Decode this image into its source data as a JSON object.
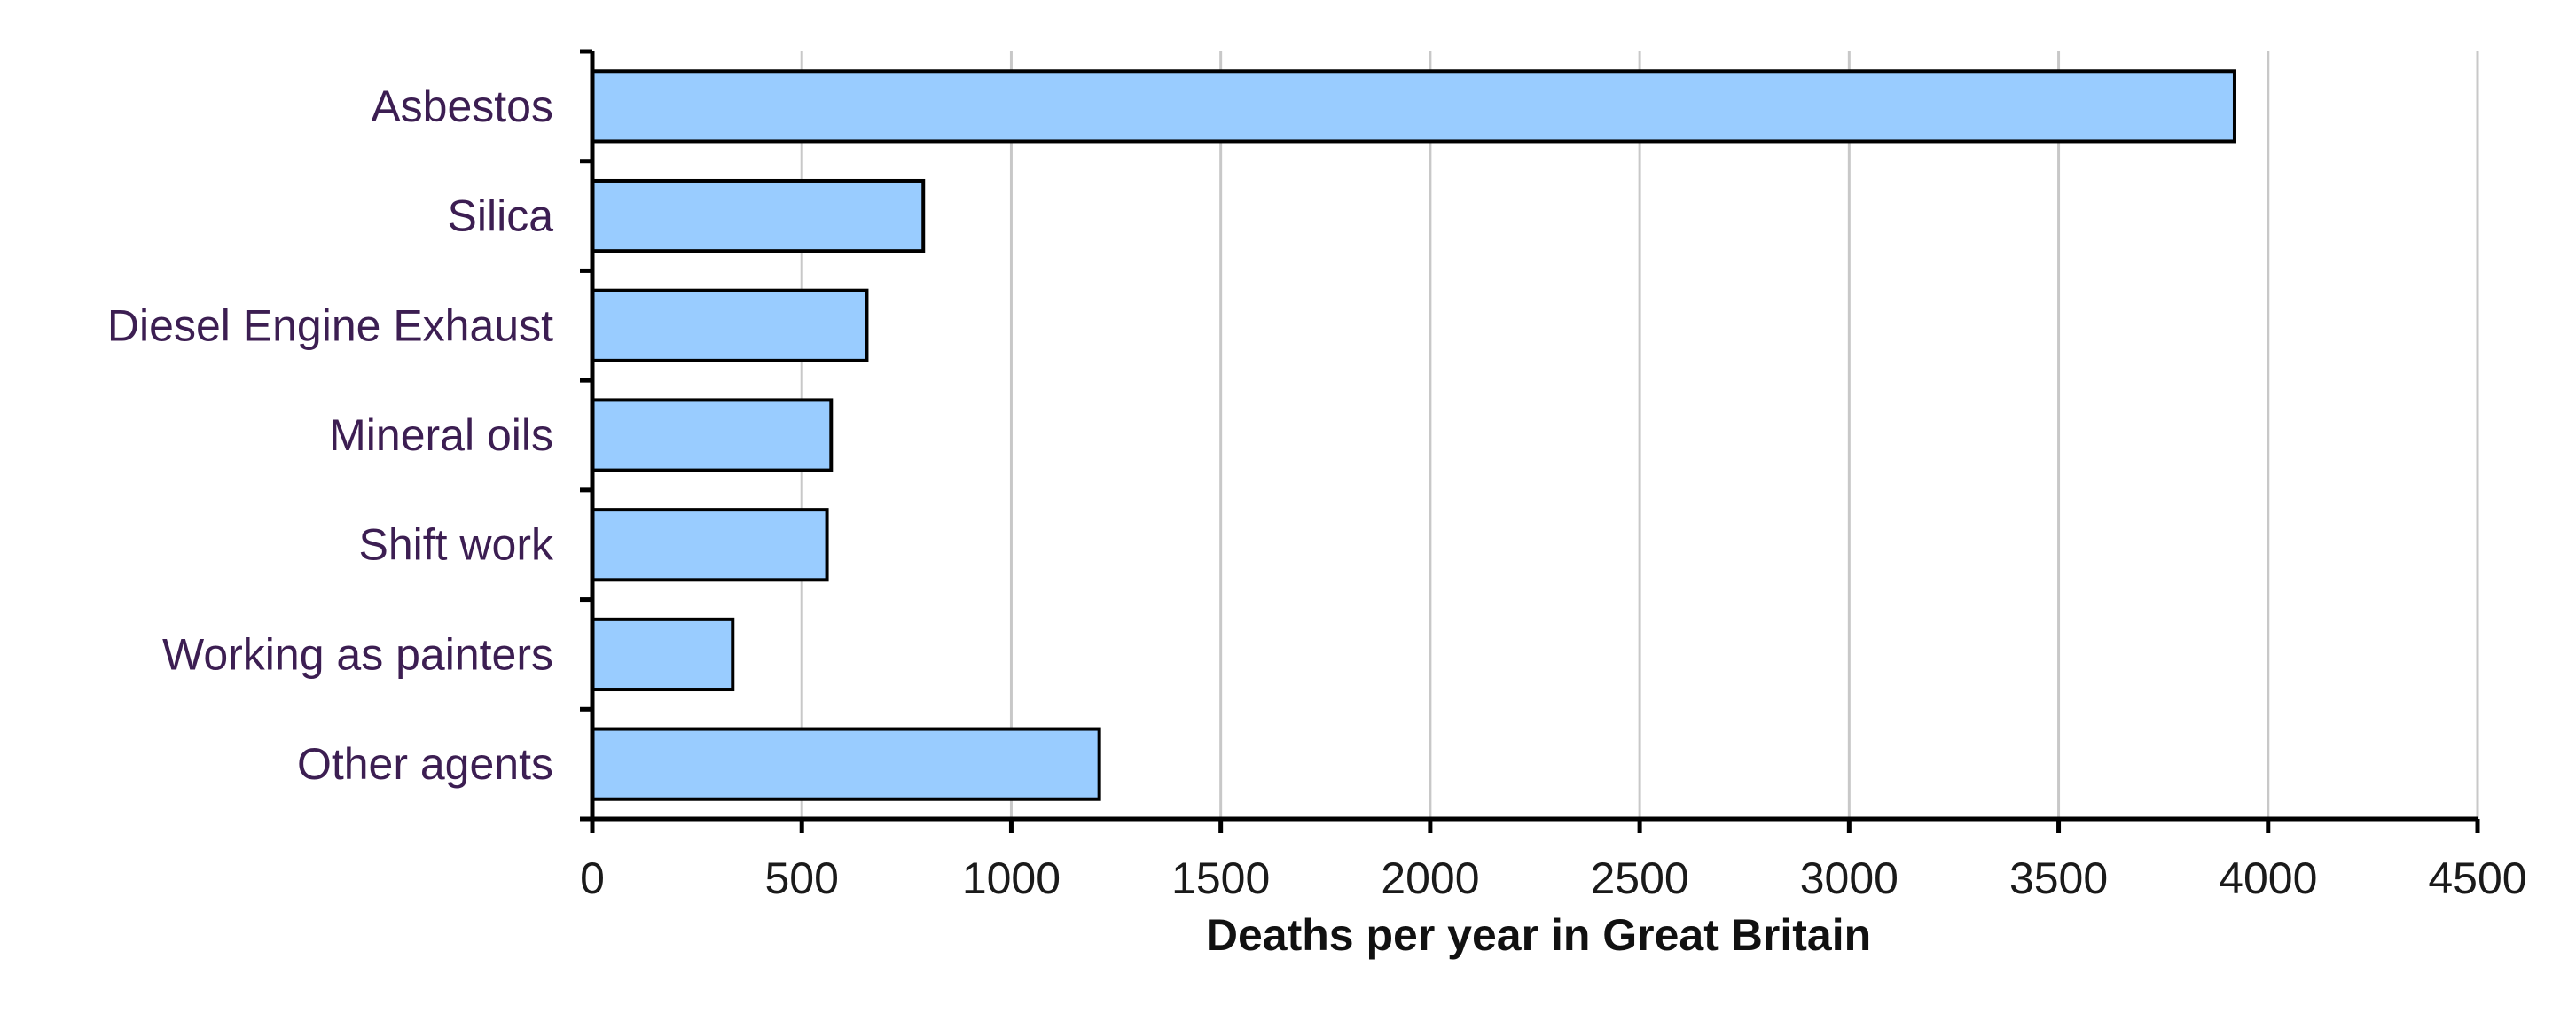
{
  "chart_data": {
    "type": "bar",
    "orientation": "horizontal",
    "categories": [
      "Asbestos",
      "Silica",
      "Diesel Engine Exhaust",
      "Mineral oils",
      "Shift work",
      "Working as painters",
      "Other agents"
    ],
    "values": [
      3920,
      790,
      655,
      570,
      560,
      335,
      1210
    ],
    "title": "",
    "xlabel": "Deaths per year in Great Britain",
    "ylabel": "",
    "xlim": [
      0,
      4500
    ],
    "xticks": [
      0,
      500,
      1000,
      1500,
      2000,
      2500,
      3000,
      3500,
      4000,
      4500
    ],
    "xtick_labels": [
      "0",
      "500",
      "1000",
      "1500",
      "2000",
      "2500",
      "3000",
      "3500",
      "4000",
      "4500"
    ],
    "grid": "vertical",
    "legend": "none",
    "bar_color": "#99ccff",
    "bar_edge_color": "#000000"
  }
}
